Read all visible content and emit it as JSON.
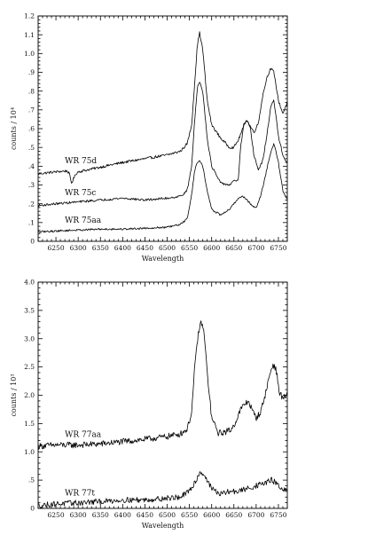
{
  "chart_data": [
    {
      "type": "line",
      "xlabel": "Wavelength",
      "ylabel": "counts / 10⁴",
      "xlim": [
        6210,
        6770
      ],
      "ylim": [
        0,
        1.2
      ],
      "xticks": [
        6250,
        6300,
        6350,
        6400,
        6450,
        6500,
        6550,
        6600,
        6650,
        6700,
        6750
      ],
      "yticks": [
        0,
        0.1,
        0.2,
        0.3,
        0.4,
        0.5,
        0.6,
        0.7,
        0.8,
        0.9,
        1.0,
        1.1,
        1.2
      ],
      "ytick_labels": [
        "0",
        ".1",
        ".2",
        ".3",
        ".4",
        ".5",
        ".6",
        ".7",
        ".8",
        ".9",
        "1.0",
        "1.1",
        "1.2"
      ],
      "grid": false,
      "series": [
        {
          "name": "WR 75d",
          "label_at": [
            6270,
            0.415
          ],
          "noise": 0.007,
          "x": [
            6210,
            6250,
            6275,
            6280,
            6285,
            6295,
            6300,
            6350,
            6400,
            6450,
            6500,
            6530,
            6545,
            6555,
            6562,
            6568,
            6573,
            6580,
            6590,
            6600,
            6620,
            6640,
            6650,
            6660,
            6670,
            6678,
            6685,
            6695,
            6705,
            6715,
            6725,
            6733,
            6740,
            6750,
            6760,
            6770
          ],
          "y": [
            0.36,
            0.37,
            0.375,
            0.36,
            0.31,
            0.36,
            0.37,
            0.395,
            0.42,
            0.44,
            0.46,
            0.48,
            0.52,
            0.62,
            0.85,
            1.05,
            1.11,
            1.02,
            0.75,
            0.62,
            0.55,
            0.5,
            0.5,
            0.54,
            0.6,
            0.65,
            0.62,
            0.58,
            0.63,
            0.78,
            0.88,
            0.92,
            0.9,
            0.75,
            0.68,
            0.74
          ]
        },
        {
          "name": "WR 75c",
          "label_at": [
            6270,
            0.4
          ],
          "noise": 0.006,
          "x": [
            6210,
            6250,
            6300,
            6350,
            6400,
            6450,
            6500,
            6530,
            6545,
            6555,
            6562,
            6568,
            6573,
            6580,
            6590,
            6600,
            6620,
            6640,
            6650,
            6660,
            6665,
            6672,
            6680,
            6687,
            6695,
            6705,
            6715,
            6725,
            6733,
            6740,
            6750,
            6760,
            6770
          ],
          "y": [
            0.19,
            0.2,
            0.21,
            0.22,
            0.23,
            0.22,
            0.23,
            0.24,
            0.27,
            0.4,
            0.65,
            0.82,
            0.85,
            0.8,
            0.55,
            0.4,
            0.31,
            0.3,
            0.32,
            0.33,
            0.5,
            0.62,
            0.64,
            0.6,
            0.46,
            0.38,
            0.43,
            0.58,
            0.72,
            0.75,
            0.56,
            0.46,
            0.41
          ]
        },
        {
          "name": "WR 75aa",
          "label_at": [
            6270,
            0.4
          ],
          "noise": 0.005,
          "x": [
            6210,
            6250,
            6300,
            6350,
            6400,
            6450,
            6500,
            6530,
            6545,
            6555,
            6562,
            6568,
            6573,
            6580,
            6590,
            6600,
            6620,
            6640,
            6650,
            6660,
            6670,
            6680,
            6690,
            6700,
            6710,
            6720,
            6730,
            6740,
            6750,
            6760,
            6770
          ],
          "y": [
            0.05,
            0.055,
            0.06,
            0.065,
            0.065,
            0.07,
            0.075,
            0.09,
            0.12,
            0.25,
            0.38,
            0.42,
            0.43,
            0.4,
            0.27,
            0.17,
            0.14,
            0.17,
            0.2,
            0.23,
            0.24,
            0.22,
            0.19,
            0.18,
            0.24,
            0.34,
            0.45,
            0.52,
            0.42,
            0.27,
            0.22
          ]
        }
      ]
    },
    {
      "type": "line",
      "xlabel": "Wavelength",
      "ylabel": "counts / 10³",
      "xlim": [
        6210,
        6770
      ],
      "ylim": [
        0,
        4.0
      ],
      "xticks": [
        6250,
        6300,
        6350,
        6400,
        6450,
        6500,
        6550,
        6600,
        6650,
        6700,
        6750
      ],
      "yticks": [
        0,
        0.5,
        1.0,
        1.5,
        2.0,
        2.5,
        3.0,
        3.5,
        4.0
      ],
      "ytick_labels": [
        "0",
        ".5",
        "1.0",
        "1.5",
        "2.0",
        "2.5",
        "3.0",
        "3.5",
        "4.0"
      ],
      "grid": false,
      "series": [
        {
          "name": "WR 77aa",
          "label_at": [
            6270,
            1.35
          ],
          "noise": 0.055,
          "x": [
            6210,
            6250,
            6300,
            6350,
            6400,
            6450,
            6500,
            6530,
            6545,
            6555,
            6562,
            6570,
            6577,
            6583,
            6590,
            6600,
            6615,
            6630,
            6645,
            6655,
            6665,
            6675,
            6683,
            6690,
            6700,
            6710,
            6720,
            6730,
            6738,
            6745,
            6752,
            6760,
            6770
          ],
          "y": [
            1.1,
            1.12,
            1.12,
            1.14,
            1.18,
            1.22,
            1.27,
            1.32,
            1.4,
            1.7,
            2.5,
            3.1,
            3.3,
            3.1,
            2.4,
            1.6,
            1.33,
            1.35,
            1.4,
            1.55,
            1.75,
            1.85,
            1.9,
            1.75,
            1.6,
            1.7,
            2.0,
            2.35,
            2.55,
            2.45,
            2.05,
            1.95,
            2.0
          ]
        },
        {
          "name": "WR 77t",
          "label_at": [
            6270,
            0.55
          ],
          "noise": 0.05,
          "x": [
            6210,
            6250,
            6300,
            6350,
            6400,
            6450,
            6500,
            6530,
            6550,
            6565,
            6575,
            6582,
            6590,
            6600,
            6620,
            6640,
            6660,
            6680,
            6700,
            6720,
            6735,
            6745,
            6755,
            6770
          ],
          "y": [
            0.05,
            0.08,
            0.1,
            0.12,
            0.15,
            0.15,
            0.18,
            0.2,
            0.3,
            0.5,
            0.65,
            0.6,
            0.5,
            0.35,
            0.25,
            0.3,
            0.3,
            0.35,
            0.4,
            0.45,
            0.5,
            0.45,
            0.35,
            0.3
          ]
        }
      ]
    }
  ]
}
